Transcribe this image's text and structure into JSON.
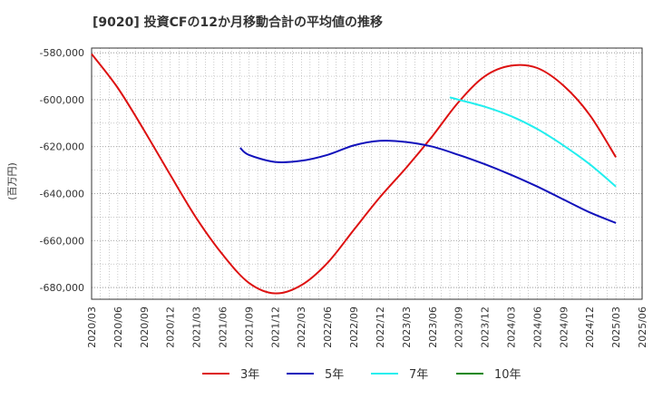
{
  "chart_data": {
    "type": "line",
    "title": "[9020]  投資CFの12か月移動合計の平均値の推移",
    "ylabel": "(百万円)",
    "xlabel": "",
    "ylim": [
      -685000,
      -578000
    ],
    "y_ticks": [
      "-580,000",
      "-600,000",
      "-620,000",
      "-640,000",
      "-660,000",
      "-680,000"
    ],
    "y_tick_values": [
      -580000,
      -600000,
      -620000,
      -640000,
      -660000,
      -680000
    ],
    "x_ticks": [
      "2020/03",
      "2020/06",
      "2020/09",
      "2020/12",
      "2021/03",
      "2021/06",
      "2021/09",
      "2021/12",
      "2022/03",
      "2022/06",
      "2022/09",
      "2022/12",
      "2023/03",
      "2023/06",
      "2023/09",
      "2023/12",
      "2024/03",
      "2024/06",
      "2024/09",
      "2024/12",
      "2025/03",
      "2025/06"
    ],
    "grid": true,
    "legend_position": "bottom",
    "series": [
      {
        "name": "3年",
        "color": "#dd1111",
        "x": [
          "2020/03",
          "2020/06",
          "2020/09",
          "2020/12",
          "2021/03",
          "2021/06",
          "2021/09",
          "2021/12",
          "2022/03",
          "2022/06",
          "2022/09",
          "2022/12",
          "2023/03",
          "2023/06",
          "2023/09",
          "2023/12",
          "2024/03",
          "2024/06",
          "2024/09",
          "2024/12",
          "2025/03"
        ],
        "values": [
          -580500,
          -595000,
          -613000,
          -632000,
          -650500,
          -666000,
          -678000,
          -682500,
          -679000,
          -669500,
          -655500,
          -641500,
          -629000,
          -615500,
          -601000,
          -590000,
          -585500,
          -586500,
          -594000,
          -606500,
          -624500
        ]
      },
      {
        "name": "5年",
        "color": "#1111bb",
        "x": [
          "2021/08",
          "2021/09",
          "2021/12",
          "2022/03",
          "2022/06",
          "2022/09",
          "2022/12",
          "2023/03",
          "2023/06",
          "2023/09",
          "2023/12",
          "2024/03",
          "2024/06",
          "2024/09",
          "2024/12",
          "2025/03"
        ],
        "values": [
          -620500,
          -623500,
          -626500,
          -626000,
          -623500,
          -619500,
          -617500,
          -618000,
          -620000,
          -623500,
          -627500,
          -632000,
          -637000,
          -642500,
          -648000,
          -652500
        ]
      },
      {
        "name": "7年",
        "color": "#22eeee",
        "x": [
          "2023/08",
          "2023/09",
          "2023/12",
          "2024/03",
          "2024/06",
          "2024/09",
          "2024/12",
          "2025/03"
        ],
        "values": [
          -599000,
          -600000,
          -603000,
          -607000,
          -612500,
          -619500,
          -627500,
          -637000
        ]
      },
      {
        "name": "10年",
        "color": "#118811",
        "x": [],
        "values": []
      }
    ]
  }
}
